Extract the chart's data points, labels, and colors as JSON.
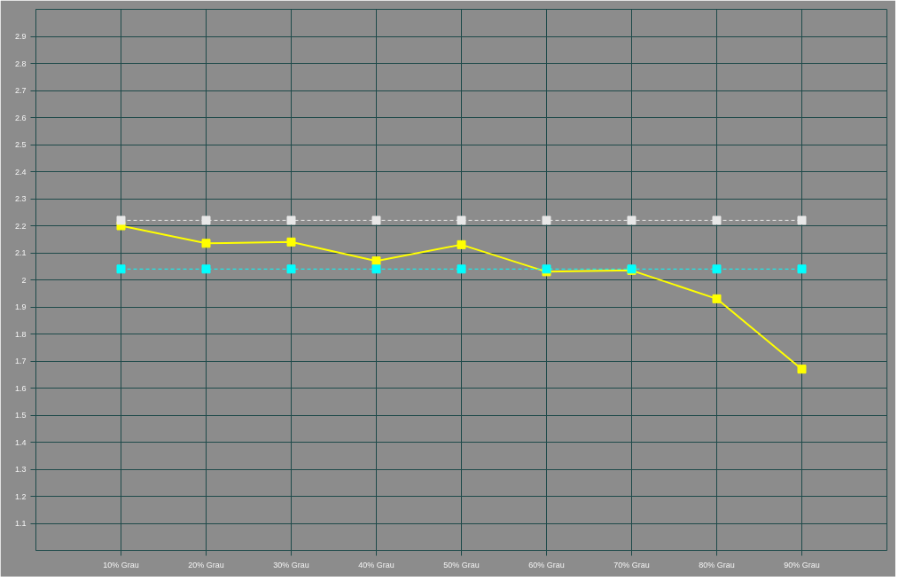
{
  "chart_data": {
    "type": "line",
    "categories": [
      "10% Grau",
      "20% Grau",
      "30% Grau",
      "40% Grau",
      "50% Grau",
      "60% Grau",
      "70% Grau",
      "80% Grau",
      "90% Grau"
    ],
    "series": [
      {
        "color": "#ffff00",
        "line_style": "solid",
        "values": [
          2.2,
          2.135,
          2.14,
          2.07,
          2.13,
          2.03,
          2.035,
          1.93,
          1.67
        ]
      },
      {
        "color": "#e8e8e8",
        "line_style": "dashed",
        "values": [
          2.22,
          2.22,
          2.22,
          2.22,
          2.22,
          2.22,
          2.22,
          2.22,
          2.22
        ]
      },
      {
        "color": "#00ffff",
        "line_style": "dashed",
        "values": [
          2.04,
          2.04,
          2.04,
          2.04,
          2.04,
          2.04,
          2.04,
          2.04,
          2.04
        ]
      }
    ],
    "ylim": [
      1.0,
      3.0
    ],
    "yticks": [
      1.1,
      1.2,
      1.3,
      1.4,
      1.5,
      1.6,
      1.7,
      1.8,
      1.9,
      {
        "value": 2.0,
        "label": "2"
      },
      2.1,
      2.2,
      2.3,
      2.4,
      2.5,
      2.6,
      2.7,
      2.8,
      2.9
    ],
    "grid": true,
    "marker": "square"
  }
}
